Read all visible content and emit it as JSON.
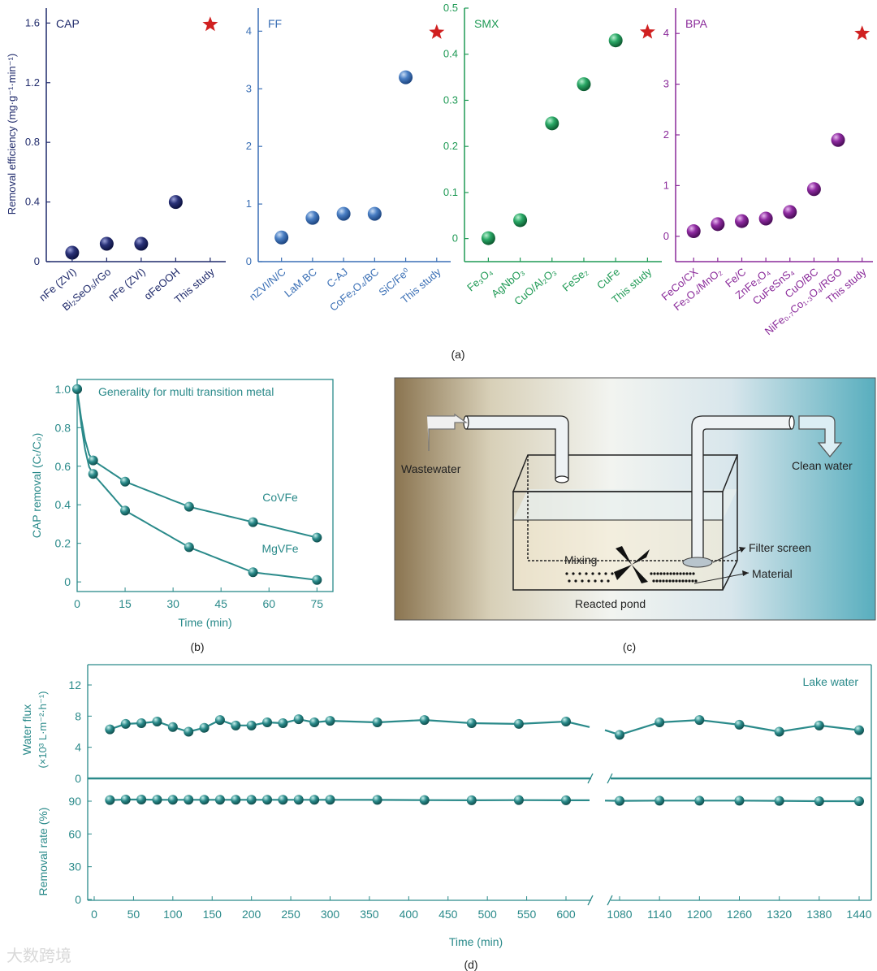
{
  "panel_a": {
    "label": "(a)",
    "ylabel": "Removal efficiency (mg·g⁻¹·min⁻¹)",
    "subplots": [
      {
        "title": "CAP",
        "color": "#1f2a6b",
        "ylim": [
          0,
          1.7
        ],
        "ticks": [
          0,
          0.4,
          0.8,
          1.2,
          1.6
        ],
        "tick_labels": [
          "0",
          "0.4",
          "0.8",
          "1.2",
          "1.6"
        ],
        "categories": [
          "nFe (ZVI)",
          "Bi₂SeO₅/rGo",
          "nFe (ZVI)",
          "αFeOOH",
          "This study"
        ],
        "values": [
          0.06,
          0.12,
          0.12,
          0.4,
          1.59
        ],
        "star_index": 4
      },
      {
        "title": "FF",
        "color": "#3a6fb5",
        "ylim": [
          0,
          4.4
        ],
        "ticks": [
          0,
          1,
          2,
          3,
          4
        ],
        "tick_labels": [
          "0",
          "1",
          "2",
          "3",
          "4"
        ],
        "categories": [
          "nZVI/N/C",
          "LaM BC",
          "C-AJ",
          "CoFe₂O₄/BC",
          "SiC/Fe⁰",
          "This study"
        ],
        "values": [
          0.42,
          0.76,
          0.83,
          0.83,
          3.2,
          3.98
        ],
        "star_index": 5
      },
      {
        "title": "SMX",
        "color": "#1f9a55",
        "ylim": [
          -0.05,
          0.5
        ],
        "ticks": [
          0,
          0.1,
          0.2,
          0.3,
          0.4,
          0.5
        ],
        "tick_labels": [
          "0",
          "0.1",
          "0.2",
          "0.3",
          "0.4",
          "0.5"
        ],
        "categories": [
          "Fe₃O₄",
          "AgNbO₃",
          "CuO/Al₂O₃",
          "FeSe₂",
          "CuFe",
          "This study"
        ],
        "values": [
          0.001,
          0.04,
          0.25,
          0.335,
          0.43,
          0.448
        ],
        "star_index": 5
      },
      {
        "title": "BPA",
        "color": "#8a2a9a",
        "ylim": [
          -0.5,
          4.5
        ],
        "ticks": [
          0,
          1,
          2,
          3,
          4
        ],
        "tick_labels": [
          "0",
          "1",
          "2",
          "3",
          "4"
        ],
        "categories": [
          "FeCo/CX",
          "Fe₃O₄/MnO₂",
          "Fe/C",
          "ZnFe₂O₄",
          "CuFeSnS₄",
          "CuO/BC",
          "NiFe₀.₇Co₁.₃O₄/RGO",
          "This study"
        ],
        "values": [
          0.1,
          0.24,
          0.3,
          0.35,
          0.48,
          0.93,
          1.9,
          4.0
        ],
        "star_index": 7
      }
    ]
  },
  "panel_b": {
    "label": "(b)",
    "title": "Generality for multi transition metal",
    "xlabel": "Time (min)",
    "ylabel": "CAP removal (Cₜ/C₀)",
    "x_ticks": [
      0,
      15,
      30,
      45,
      60,
      75
    ],
    "y_ticks": [
      "0",
      "0.2",
      "0.4",
      "0.6",
      "0.8",
      "1.0"
    ],
    "xlim": [
      0,
      80
    ],
    "ylim": [
      -0.05,
      1.05
    ],
    "series": [
      {
        "name": "CoVFe",
        "x": [
          0,
          5,
          15,
          35,
          55,
          75
        ],
        "y": [
          1.0,
          0.63,
          0.52,
          0.39,
          0.31,
          0.23
        ]
      },
      {
        "name": "MgVFe",
        "x": [
          0,
          5,
          15,
          35,
          55,
          75
        ],
        "y": [
          1.0,
          0.56,
          0.37,
          0.18,
          0.05,
          0.01
        ]
      }
    ],
    "color": "#2a8a8a"
  },
  "panel_c": {
    "label": "(c)",
    "labels": {
      "wastewater": "Wastewater",
      "clean": "Clean water",
      "filter": "Filter screen",
      "material": "Material",
      "mixing": "Mixing",
      "pond": "Reacted pond"
    }
  },
  "panel_d": {
    "label": "(d)",
    "annotation": "Lake water",
    "xlabel": "Time (min)",
    "ylabel_top": "Water flux",
    "ylabel_top_unit": "(×10³ L·m⁻²·h⁻¹)",
    "ylabel_bottom": "Removal rate (%)",
    "top_ticks": [
      "0",
      "4",
      "8",
      "12"
    ],
    "bottom_ticks": [
      "0",
      "30",
      "60",
      "90"
    ],
    "x_ticks_left": [
      0,
      50,
      100,
      150,
      200,
      250,
      300,
      350,
      400,
      450,
      500,
      550,
      600
    ],
    "x_ticks_right": [
      1080,
      1140,
      1200,
      1260,
      1320,
      1380,
      1440
    ],
    "flux_left": {
      "x": [
        20,
        40,
        60,
        80,
        100,
        120,
        140,
        160,
        180,
        200,
        220,
        240,
        260,
        280,
        300,
        360,
        420,
        480,
        540,
        600,
        625
      ],
      "y": [
        6.3,
        7.0,
        7.1,
        7.3,
        6.6,
        6.0,
        6.5,
        7.5,
        6.8,
        6.8,
        7.2,
        7.1,
        7.6,
        7.2,
        7.4,
        7.2,
        7.5,
        7.1,
        7.0,
        7.3,
        6.6
      ]
    },
    "flux_right": {
      "x": [
        1050,
        1080,
        1140,
        1200,
        1260,
        1320,
        1380,
        1440
      ],
      "y": [
        6.2,
        5.6,
        7.2,
        7.5,
        6.9,
        6.0,
        6.8,
        6.2
      ]
    },
    "removal_left": {
      "x": [
        20,
        40,
        60,
        80,
        100,
        120,
        140,
        160,
        180,
        200,
        220,
        240,
        260,
        280,
        300,
        360,
        420,
        480,
        540,
        600,
        625
      ],
      "y": [
        91,
        91.5,
        91.5,
        91.3,
        91.3,
        91.3,
        91.3,
        91.3,
        91.3,
        91.3,
        91.3,
        91.3,
        91.3,
        91.3,
        91.3,
        91.2,
        91,
        90.8,
        91,
        90.8,
        90.8
      ]
    },
    "removal_right": {
      "x": [
        1050,
        1080,
        1140,
        1200,
        1260,
        1320,
        1380,
        1440
      ],
      "y": [
        90.5,
        90.3,
        90.5,
        90.5,
        90.5,
        90.3,
        90,
        90
      ]
    },
    "color": "#2a8a8a"
  },
  "watermark": "大数跨境"
}
